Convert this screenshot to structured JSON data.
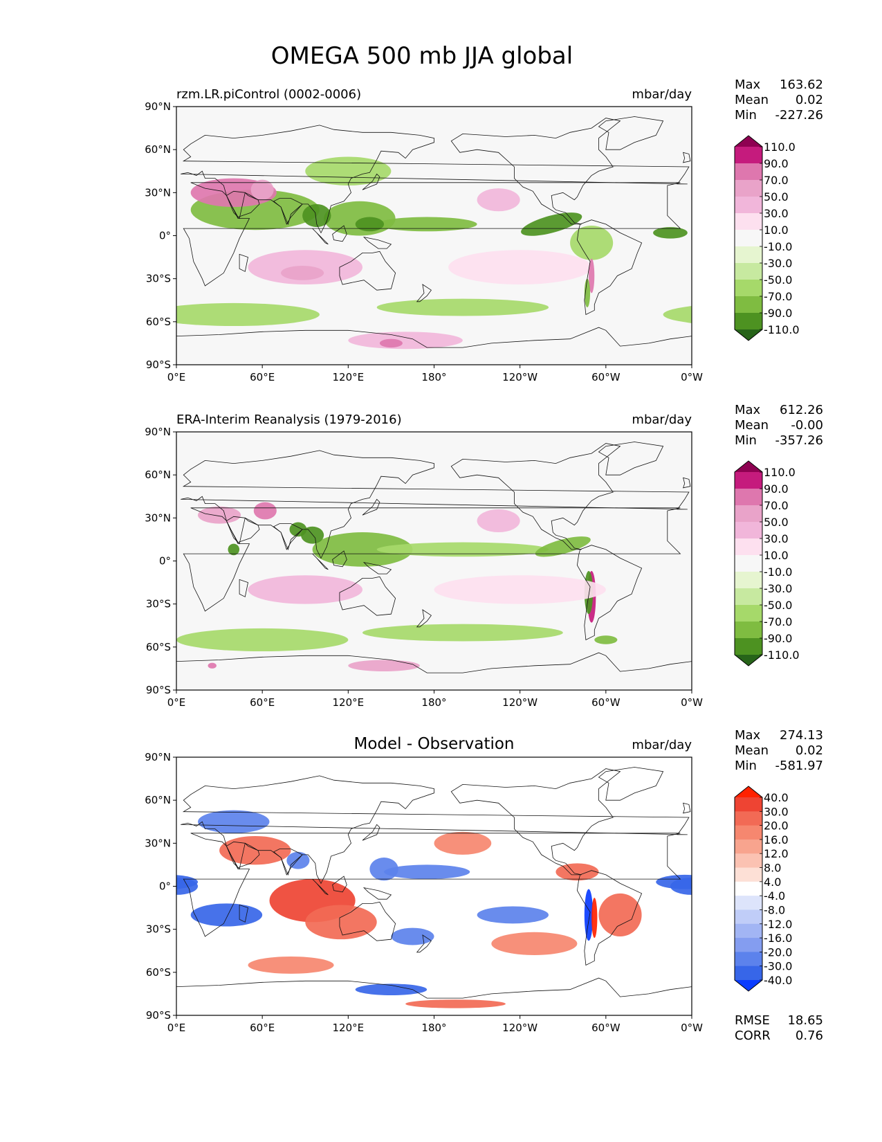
{
  "chart_data": {
    "type": "map-contour",
    "title": "OMEGA 500 mb JJA global",
    "x_ticks": [
      "0°E",
      "60°E",
      "120°E",
      "180°",
      "120°W",
      "60°W",
      "0°W"
    ],
    "y_ticks": [
      "90°N",
      "60°N",
      "30°N",
      "0°",
      "30°S",
      "60°S",
      "90°S"
    ],
    "panels": [
      {
        "id": "model",
        "title": "rzm.LR.piControl (0002-0006)",
        "units": "mbar/day",
        "stats": {
          "max_label": "Max",
          "max": "163.62",
          "mean_label": "Mean",
          "mean": "0.02",
          "min_label": "Min",
          "min": "-227.26"
        },
        "colorbar": {
          "levels": [
            "110.0",
            "90.0",
            "70.0",
            "50.0",
            "30.0",
            "10.0",
            "-10.0",
            "-30.0",
            "-50.0",
            "-70.0",
            "-90.0",
            "-110.0"
          ],
          "colors": [
            "#8e0152",
            "#c51b7d",
            "#de77ae",
            "#e9a3c9",
            "#f1b6da",
            "#fde0ef",
            "#f7f7f7",
            "#e6f5d0",
            "#c7e9a0",
            "#a6d96a",
            "#7fbc41",
            "#4d9221",
            "#276419"
          ]
        }
      },
      {
        "id": "obs",
        "title": "ERA-Interim Reanalysis (1979-2016)",
        "units": "mbar/day",
        "stats": {
          "max_label": "Max",
          "max": "612.26",
          "mean_label": "Mean",
          "mean": "-0.00",
          "min_label": "Min",
          "min": "-357.26"
        },
        "colorbar": {
          "levels": [
            "110.0",
            "90.0",
            "70.0",
            "50.0",
            "30.0",
            "10.0",
            "-10.0",
            "-30.0",
            "-50.0",
            "-70.0",
            "-90.0",
            "-110.0"
          ],
          "colors": [
            "#8e0152",
            "#c51b7d",
            "#de77ae",
            "#e9a3c9",
            "#f1b6da",
            "#fde0ef",
            "#f7f7f7",
            "#e6f5d0",
            "#c7e9a0",
            "#a6d96a",
            "#7fbc41",
            "#4d9221",
            "#276419"
          ]
        }
      },
      {
        "id": "diff",
        "title": "Model - Observation",
        "units": "mbar/day",
        "stats": {
          "max_label": "Max",
          "max": "274.13",
          "mean_label": "Mean",
          "mean": "0.02",
          "min_label": "Min",
          "min": "-581.97"
        },
        "metrics": {
          "rmse_label": "RMSE",
          "rmse": "18.65",
          "corr_label": "CORR",
          "corr": "0.76"
        },
        "colorbar": {
          "levels": [
            "40.0",
            "30.0",
            "20.0",
            "16.0",
            "12.0",
            "8.0",
            "4.0",
            "-4.0",
            "-8.0",
            "-12.0",
            "-16.0",
            "-20.0",
            "-30.0",
            "-40.0"
          ],
          "colors": [
            "#ff2200",
            "#ee4433",
            "#f26a55",
            "#f6876f",
            "#f8a48e",
            "#fbc2b2",
            "#fde0d6",
            "#ffffff",
            "#dde4fb",
            "#c0cdf8",
            "#a2b5f4",
            "#849df0",
            "#5c82ec",
            "#3766e8",
            "#0a3cff"
          ]
        }
      }
    ],
    "features": [
      {
        "panel": "model",
        "cls": 10,
        "lon": 55,
        "lat": 18,
        "rx": 45,
        "ry": 14,
        "rot": 0
      },
      {
        "panel": "model",
        "cls": 10,
        "lon": 128,
        "lat": 12,
        "rx": 25,
        "ry": 12,
        "rot": 0
      },
      {
        "panel": "model",
        "cls": 10,
        "lon": 175,
        "lat": 8,
        "rx": 35,
        "ry": 5,
        "rot": 0
      },
      {
        "panel": "model",
        "cls": 11,
        "lon": 262,
        "lat": 8,
        "rx": 22,
        "ry": 6,
        "rot": -15
      },
      {
        "panel": "model",
        "cls": 11,
        "lon": 98,
        "lat": 14,
        "rx": 10,
        "ry": 8,
        "rot": 0
      },
      {
        "panel": "model",
        "cls": 11,
        "lon": 135,
        "lat": 8,
        "rx": 10,
        "ry": 5,
        "rot": 0
      },
      {
        "panel": "model",
        "cls": 11,
        "lon": 345,
        "lat": 2,
        "rx": 12,
        "ry": 4,
        "rot": 0
      },
      {
        "panel": "model",
        "cls": 2,
        "lon": 40,
        "lat": 30,
        "rx": 30,
        "ry": 10,
        "rot": 0
      },
      {
        "panel": "model",
        "cls": 3,
        "lon": 60,
        "lat": 32,
        "rx": 8,
        "ry": 7,
        "rot": 0
      },
      {
        "panel": "model",
        "cls": 4,
        "lon": 90,
        "lat": -22,
        "rx": 40,
        "ry": 12,
        "rot": 0
      },
      {
        "panel": "model",
        "cls": 3,
        "lon": 88,
        "lat": -26,
        "rx": 15,
        "ry": 5,
        "rot": 0
      },
      {
        "panel": "model",
        "cls": 4,
        "lon": 160,
        "lat": -73,
        "rx": 40,
        "ry": 6,
        "rot": 0
      },
      {
        "panel": "model",
        "cls": 2,
        "lon": 150,
        "lat": -75,
        "rx": 8,
        "ry": 3,
        "rot": 0
      },
      {
        "panel": "model",
        "cls": 5,
        "lon": 240,
        "lat": -22,
        "rx": 50,
        "ry": 12,
        "rot": 0
      },
      {
        "panel": "model",
        "cls": 4,
        "lon": 225,
        "lat": 25,
        "rx": 15,
        "ry": 8,
        "rot": 0
      },
      {
        "panel": "model",
        "cls": 9,
        "lon": 40,
        "lat": -55,
        "rx": 60,
        "ry": 8,
        "rot": 0
      },
      {
        "panel": "model",
        "cls": 9,
        "lon": 200,
        "lat": -50,
        "rx": 60,
        "ry": 6,
        "rot": 0
      },
      {
        "panel": "model",
        "cls": 9,
        "lon": 120,
        "lat": 45,
        "rx": 30,
        "ry": 10,
        "rot": 0
      },
      {
        "panel": "model",
        "cls": 9,
        "lon": 290,
        "lat": -5,
        "rx": 15,
        "ry": 12,
        "rot": 0
      },
      {
        "panel": "model",
        "cls": 2,
        "lon": 290,
        "lat": -28,
        "rx": 2,
        "ry": 12,
        "rot": 0
      },
      {
        "panel": "model",
        "cls": 10,
        "lon": 287,
        "lat": -40,
        "rx": 2,
        "ry": 10,
        "rot": 0
      },
      {
        "panel": "obs",
        "cls": 10,
        "lon": 130,
        "lat": 8,
        "rx": 35,
        "ry": 12,
        "rot": 0
      },
      {
        "panel": "obs",
        "cls": 9,
        "lon": 200,
        "lat": 8,
        "rx": 60,
        "ry": 5,
        "rot": 0
      },
      {
        "panel": "obs",
        "cls": 11,
        "lon": 95,
        "lat": 18,
        "rx": 8,
        "ry": 6,
        "rot": 0
      },
      {
        "panel": "obs",
        "cls": 11,
        "lon": 85,
        "lat": 22,
        "rx": 6,
        "ry": 5,
        "rot": 0
      },
      {
        "panel": "obs",
        "cls": 10,
        "lon": 270,
        "lat": 10,
        "rx": 20,
        "ry": 5,
        "rot": -15
      },
      {
        "panel": "obs",
        "cls": 11,
        "lon": 40,
        "lat": 8,
        "rx": 4,
        "ry": 4,
        "rot": 0
      },
      {
        "panel": "obs",
        "cls": 1,
        "lon": 290,
        "lat": -25,
        "rx": 3,
        "ry": 18,
        "rot": 0
      },
      {
        "panel": "obs",
        "cls": 11,
        "lon": 288,
        "lat": -22,
        "rx": 3,
        "ry": 15,
        "rot": 0
      },
      {
        "panel": "obs",
        "cls": 2,
        "lon": 62,
        "lat": 35,
        "rx": 8,
        "ry": 6,
        "rot": 0
      },
      {
        "panel": "obs",
        "cls": 3,
        "lon": 30,
        "lat": 32,
        "rx": 15,
        "ry": 6,
        "rot": 0
      },
      {
        "panel": "obs",
        "cls": 3,
        "lon": 145,
        "lat": -73,
        "rx": 25,
        "ry": 4,
        "rot": 0
      },
      {
        "panel": "obs",
        "cls": 2,
        "lon": 25,
        "lat": -73,
        "rx": 3,
        "ry": 2,
        "rot": 0
      },
      {
        "panel": "obs",
        "cls": 4,
        "lon": 90,
        "lat": -20,
        "rx": 40,
        "ry": 10,
        "rot": 0
      },
      {
        "panel": "obs",
        "cls": 5,
        "lon": 240,
        "lat": -20,
        "rx": 60,
        "ry": 10,
        "rot": 0
      },
      {
        "panel": "obs",
        "cls": 9,
        "lon": 60,
        "lat": -55,
        "rx": 60,
        "ry": 8,
        "rot": 0
      },
      {
        "panel": "obs",
        "cls": 9,
        "lon": 200,
        "lat": -50,
        "rx": 70,
        "ry": 6,
        "rot": 0
      },
      {
        "panel": "obs",
        "cls": 4,
        "lon": 225,
        "lat": 28,
        "rx": 15,
        "ry": 8,
        "rot": 0
      },
      {
        "panel": "obs",
        "cls": 10,
        "lon": 300,
        "lat": -55,
        "rx": 8,
        "ry": 3,
        "rot": 0
      },
      {
        "panel": "diff",
        "cls": 1,
        "lon": 95,
        "lat": -10,
        "rx": 30,
        "ry": 15,
        "rot": 0
      },
      {
        "panel": "diff",
        "cls": 2,
        "lon": 115,
        "lat": -25,
        "rx": 25,
        "ry": 12,
        "rot": 0
      },
      {
        "panel": "diff",
        "cls": 2,
        "lon": 55,
        "lat": 25,
        "rx": 25,
        "ry": 10,
        "rot": 0
      },
      {
        "panel": "diff",
        "cls": 2,
        "lon": 280,
        "lat": 10,
        "rx": 15,
        "ry": 6,
        "rot": 0
      },
      {
        "panel": "diff",
        "cls": 2,
        "lon": 310,
        "lat": -20,
        "rx": 15,
        "ry": 15,
        "rot": 0
      },
      {
        "panel": "diff",
        "cls": 3,
        "lon": 200,
        "lat": 30,
        "rx": 20,
        "ry": 8,
        "rot": 0
      },
      {
        "panel": "diff",
        "cls": 2,
        "lon": 195,
        "lat": -82,
        "rx": 35,
        "ry": 3,
        "rot": 0
      },
      {
        "panel": "diff",
        "cls": 3,
        "lon": 250,
        "lat": -40,
        "rx": 30,
        "ry": 8,
        "rot": 0
      },
      {
        "panel": "diff",
        "cls": 3,
        "lon": 80,
        "lat": -55,
        "rx": 30,
        "ry": 6,
        "rot": 0
      },
      {
        "panel": "diff",
        "cls": 13,
        "lon": 35,
        "lat": -20,
        "rx": 25,
        "ry": 8,
        "rot": 0
      },
      {
        "panel": "diff",
        "cls": 13,
        "lon": 0,
        "lat": 0,
        "rx": 15,
        "ry": 6,
        "rot": 0
      },
      {
        "panel": "diff",
        "cls": 13,
        "lon": 355,
        "lat": 3,
        "rx": 20,
        "ry": 5,
        "rot": 0
      },
      {
        "panel": "diff",
        "cls": 12,
        "lon": 235,
        "lat": -20,
        "rx": 25,
        "ry": 6,
        "rot": 0
      },
      {
        "panel": "diff",
        "cls": 12,
        "lon": 175,
        "lat": 10,
        "rx": 30,
        "ry": 5,
        "rot": 0
      },
      {
        "panel": "diff",
        "cls": 14,
        "lon": 288,
        "lat": -20,
        "rx": 3,
        "ry": 18,
        "rot": 0
      },
      {
        "panel": "diff",
        "cls": 13,
        "lon": 150,
        "lat": -72,
        "rx": 25,
        "ry": 4,
        "rot": 0
      },
      {
        "panel": "diff",
        "cls": 12,
        "lon": 145,
        "lat": 12,
        "rx": 10,
        "ry": 8,
        "rot": 0
      },
      {
        "panel": "diff",
        "cls": 12,
        "lon": 40,
        "lat": 45,
        "rx": 25,
        "ry": 8,
        "rot": 0
      },
      {
        "panel": "diff",
        "cls": 12,
        "lon": 85,
        "lat": 18,
        "rx": 8,
        "ry": 6,
        "rot": 0
      },
      {
        "panel": "diff",
        "cls": 12,
        "lon": 165,
        "lat": -35,
        "rx": 15,
        "ry": 6,
        "rot": 0
      },
      {
        "panel": "diff",
        "cls": 0,
        "lon": 292,
        "lat": -22,
        "rx": 2,
        "ry": 14,
        "rot": 0
      }
    ]
  }
}
